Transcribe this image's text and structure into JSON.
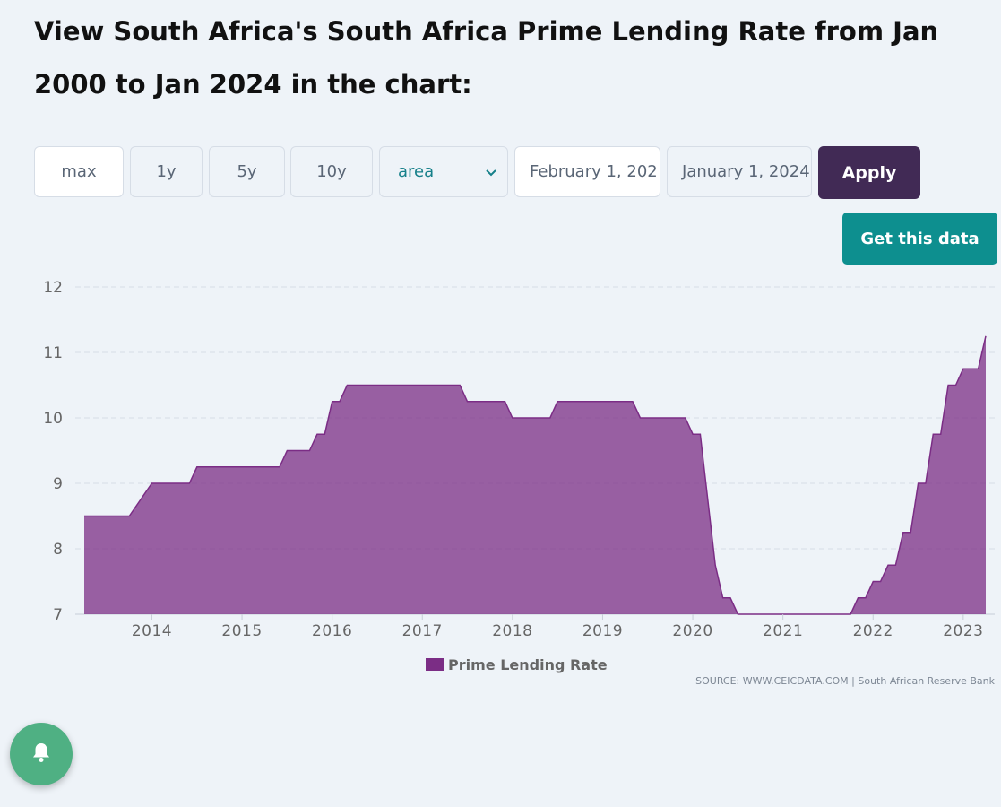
{
  "page": {
    "title": "View South Africa's South Africa Prime Lending Rate from Jan 2000 to Jan 2024 in the chart:"
  },
  "controls": {
    "range_buttons": [
      "max",
      "1y",
      "5y",
      "10y"
    ],
    "chart_type_selected": "area",
    "start_date": "February 1, 202",
    "end_date": "January 1, 2024",
    "apply_label": "Apply",
    "get_data_label": "Get this data"
  },
  "source_text": "SOURCE: WWW.CEICDATA.COM | South African Reserve Bank",
  "colors": {
    "series": "#7b2d85",
    "apply_button": "#412a55",
    "get_data_button": "#0d8f8f",
    "notification_button": "#4fb083"
  },
  "icons": {
    "notification": "bell-icon",
    "dropdown": "chevron-down-icon"
  },
  "chart_data": {
    "type": "area",
    "ylim": [
      7,
      12
    ],
    "yticks": [
      7,
      8,
      9,
      10,
      11,
      12
    ],
    "xticks": [
      "2014",
      "2015",
      "2016",
      "2017",
      "2018",
      "2019",
      "2020",
      "2021",
      "2022",
      "2023"
    ],
    "grid": true,
    "legend": "bottom-center",
    "series": [
      {
        "name": "Prime Lending Rate",
        "color": "#7b2d85",
        "points": [
          [
            "2013-04",
            8.5
          ],
          [
            "2013-10",
            8.5
          ],
          [
            "2014-01",
            9.0
          ],
          [
            "2014-06",
            9.0
          ],
          [
            "2014-07",
            9.25
          ],
          [
            "2015-06",
            9.25
          ],
          [
            "2015-07",
            9.5
          ],
          [
            "2015-10",
            9.5
          ],
          [
            "2015-11",
            9.75
          ],
          [
            "2015-12",
            9.75
          ],
          [
            "2016-01",
            10.25
          ],
          [
            "2016-02",
            10.25
          ],
          [
            "2016-03",
            10.5
          ],
          [
            "2017-06",
            10.5
          ],
          [
            "2017-07",
            10.25
          ],
          [
            "2017-12",
            10.25
          ],
          [
            "2018-01",
            10.0
          ],
          [
            "2018-06",
            10.0
          ],
          [
            "2018-07",
            10.25
          ],
          [
            "2019-05",
            10.25
          ],
          [
            "2019-06",
            10.0
          ],
          [
            "2019-12",
            10.0
          ],
          [
            "2020-01",
            9.75
          ],
          [
            "2020-02",
            9.75
          ],
          [
            "2020-03",
            8.75
          ],
          [
            "2020-04",
            7.75
          ],
          [
            "2020-05",
            7.25
          ],
          [
            "2020-06",
            7.25
          ],
          [
            "2020-07",
            7.0
          ],
          [
            "2021-10",
            7.0
          ],
          [
            "2021-11",
            7.25
          ],
          [
            "2021-12",
            7.25
          ],
          [
            "2022-01",
            7.5
          ],
          [
            "2022-02",
            7.5
          ],
          [
            "2022-03",
            7.75
          ],
          [
            "2022-04",
            7.75
          ],
          [
            "2022-05",
            8.25
          ],
          [
            "2022-06",
            8.25
          ],
          [
            "2022-07",
            9.0
          ],
          [
            "2022-08",
            9.0
          ],
          [
            "2022-09",
            9.75
          ],
          [
            "2022-10",
            9.75
          ],
          [
            "2022-11",
            10.5
          ],
          [
            "2022-12",
            10.5
          ],
          [
            "2023-01",
            10.75
          ],
          [
            "2023-03",
            10.75
          ],
          [
            "2023-04",
            11.25
          ]
        ]
      }
    ]
  }
}
